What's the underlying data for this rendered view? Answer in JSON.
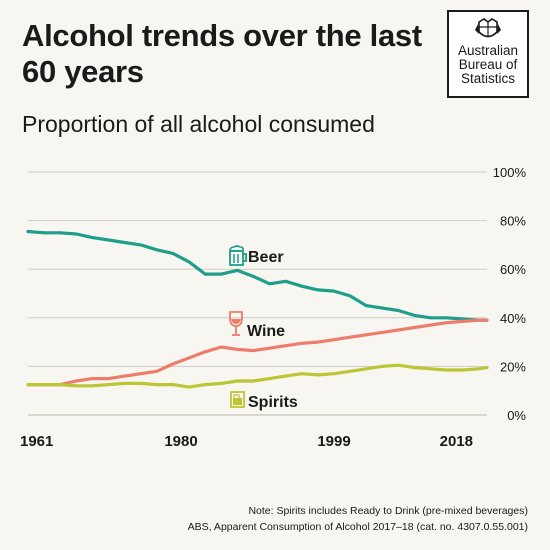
{
  "title": "Alcohol trends over the last 60 years",
  "subtitle": "Proportion of all alcohol consumed",
  "logo": {
    "lines": [
      "Australian",
      "Bureau of",
      "Statistics"
    ]
  },
  "colors": {
    "beer": "#1e9e8b",
    "wine": "#ee7c6b",
    "spirits": "#bcc634",
    "grid": "#cfcdc4",
    "background": "#f7f6f1"
  },
  "chart_data": {
    "type": "line",
    "title": "Proportion of all alcohol consumed",
    "x_tick_labels": [
      "1961",
      "1980",
      "1999",
      "2018"
    ],
    "y_tick_labels": [
      "0%",
      "20%",
      "40%",
      "60%",
      "80%",
      "100%"
    ],
    "xlim": [
      1961,
      2018
    ],
    "ylim": [
      0,
      100
    ],
    "grid": true,
    "x": [
      1961,
      1963,
      1965,
      1967,
      1969,
      1971,
      1973,
      1975,
      1977,
      1979,
      1981,
      1983,
      1985,
      1987,
      1989,
      1991,
      1993,
      1995,
      1997,
      1999,
      2001,
      2003,
      2005,
      2007,
      2009,
      2011,
      2013,
      2015,
      2017,
      2018
    ],
    "series": [
      {
        "name": "Beer",
        "icon": "beer-mug-icon",
        "color": "#1e9e8b",
        "values": [
          75.5,
          75,
          75,
          74.5,
          73,
          72,
          71,
          70,
          68,
          66.5,
          63,
          58,
          58,
          59.5,
          57,
          54,
          55,
          53,
          51.5,
          51,
          49,
          45,
          44,
          43,
          41,
          40,
          40,
          39.5,
          39,
          39
        ]
      },
      {
        "name": "Wine",
        "icon": "wine-glass-icon",
        "color": "#ee7c6b",
        "values": [
          12.5,
          12.5,
          12.5,
          14,
          15,
          15,
          16,
          17,
          18,
          21,
          23.5,
          26,
          28,
          27,
          26.5,
          27.5,
          28.5,
          29.5,
          30,
          31,
          32,
          33,
          34,
          35,
          36,
          37,
          38,
          38.5,
          39,
          39
        ]
      },
      {
        "name": "Spirits",
        "icon": "spirits-glass-icon",
        "color": "#bcc634",
        "values": [
          12.5,
          12.5,
          12.5,
          12,
          12,
          12.5,
          13,
          13,
          12.5,
          12.5,
          11.5,
          12.5,
          13,
          14,
          14,
          15,
          16,
          17,
          16.5,
          17,
          18,
          19,
          20,
          20.5,
          19.5,
          19,
          18.5,
          18.5,
          19,
          19.5
        ]
      }
    ]
  },
  "footer": {
    "note": "Note: Spirits includes Ready to Drink (pre-mixed beverages)",
    "source": "ABS, Apparent Consumption of Alcohol 2017–18 (cat. no. 4307.0.55.001)"
  }
}
